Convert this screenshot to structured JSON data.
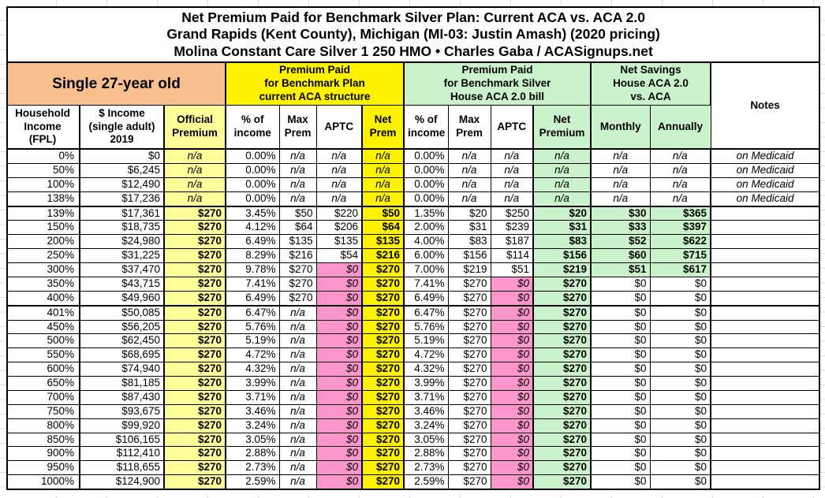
{
  "title": {
    "line1": "Net Premium Paid for Benchmark Silver Plan: Current ACA vs. ACA 2.0",
    "line2": "Grand Rapids (Kent County), Michigan (MI-03: Justin Amash) (2020 pricing)",
    "line3": "Molina Constant Care Silver 1 250 HMO • Charles Gaba / ACASignups.net"
  },
  "sections": {
    "demographic": "Single 27-year old",
    "aca": "Premium Paid\nfor Benchmark Plan\ncurrent ACA structure",
    "aca2": "Premium Paid\nfor Benchmark Silver\nHouse ACA 2.0 bill",
    "savings": "Net Savings\nHouse ACA 2.0\nvs. ACA",
    "notes": "Notes"
  },
  "columns": [
    "Household\nIncome\n(FPL)",
    "$ Income\n(single adult)\n2019",
    "Official\nPremium",
    "% of\nincome",
    "Max\nPrem",
    "APTC",
    "Net\nPrem",
    "% of\nincome",
    "Max\nPrem",
    "APTC",
    "Net\nPremium",
    "Monthly",
    "Annually"
  ],
  "colors": {
    "demographic_header": "#FABF8F",
    "aca_section_yellow": "#FFF200",
    "official_premium_yellow": "#FFFF99",
    "green_section": "#CBF3CB",
    "zero_aptc_pink": "#FA96CB",
    "border": "#000000",
    "background": "#FFFFFF"
  },
  "chart_data": {
    "type": "table",
    "title": "Net Premium Paid for Benchmark Silver Plan: Current ACA vs. ACA 2.0",
    "subtitle": "Grand Rapids (Kent County), Michigan (MI-03: Justin Amash) (2020 pricing)",
    "plan": "Molina Constant Care Silver 1 250 HMO • Charles Gaba / ACASignups.net",
    "column_keys": [
      "fpl",
      "income",
      "official-premium",
      "aca-pct-income",
      "aca-max-prem",
      "aca-aptc",
      "aca-net-prem",
      "aca2-pct-income",
      "aca2-max-prem",
      "aca2-aptc",
      "aca2-net-premium",
      "savings-monthly",
      "savings-annually",
      "notes"
    ],
    "thick_after_rows": [
      3,
      10
    ],
    "rows": [
      [
        "0%",
        "$0",
        "n/a",
        "0.00%",
        "n/a",
        "n/a",
        "n/a",
        "0.00%",
        "n/a",
        "n/a",
        "n/a",
        "n/a",
        "n/a",
        "on Medicaid"
      ],
      [
        "50%",
        "$6,245",
        "n/a",
        "0.00%",
        "n/a",
        "n/a",
        "n/a",
        "0.00%",
        "n/a",
        "n/a",
        "n/a",
        "n/a",
        "n/a",
        "on Medicaid"
      ],
      [
        "100%",
        "$12,490",
        "n/a",
        "0.00%",
        "n/a",
        "n/a",
        "n/a",
        "0.00%",
        "n/a",
        "n/a",
        "n/a",
        "n/a",
        "n/a",
        "on Medicaid"
      ],
      [
        "138%",
        "$17,236",
        "n/a",
        "0.00%",
        "n/a",
        "n/a",
        "n/a",
        "0.00%",
        "n/a",
        "n/a",
        "n/a",
        "n/a",
        "n/a",
        "on Medicaid"
      ],
      [
        "139%",
        "$17,361",
        "$270",
        "3.45%",
        "$50",
        "$220",
        "$50",
        "1.35%",
        "$20",
        "$250",
        "$20",
        "$30",
        "$365",
        ""
      ],
      [
        "150%",
        "$18,735",
        "$270",
        "4.12%",
        "$64",
        "$206",
        "$64",
        "2.00%",
        "$31",
        "$239",
        "$31",
        "$33",
        "$397",
        ""
      ],
      [
        "200%",
        "$24,980",
        "$270",
        "6.49%",
        "$135",
        "$135",
        "$135",
        "4.00%",
        "$83",
        "$187",
        "$83",
        "$52",
        "$622",
        ""
      ],
      [
        "250%",
        "$31,225",
        "$270",
        "8.29%",
        "$216",
        "$54",
        "$216",
        "6.00%",
        "$156",
        "$114",
        "$156",
        "$60",
        "$715",
        ""
      ],
      [
        "300%",
        "$37,470",
        "$270",
        "9.78%",
        "$270",
        "$0",
        "$270",
        "7.00%",
        "$219",
        "$51",
        "$219",
        "$51",
        "$617",
        ""
      ],
      [
        "350%",
        "$43,715",
        "$270",
        "7.41%",
        "$270",
        "$0",
        "$270",
        "7.41%",
        "$270",
        "$0",
        "$270",
        "$0",
        "$0",
        ""
      ],
      [
        "400%",
        "$49,960",
        "$270",
        "6.49%",
        "$270",
        "$0",
        "$270",
        "6.49%",
        "$270",
        "$0",
        "$270",
        "$0",
        "$0",
        ""
      ],
      [
        "401%",
        "$50,085",
        "$270",
        "6.47%",
        "n/a",
        "$0",
        "$270",
        "6.47%",
        "$270",
        "$0",
        "$270",
        "$0",
        "$0",
        ""
      ],
      [
        "450%",
        "$56,205",
        "$270",
        "5.76%",
        "n/a",
        "$0",
        "$270",
        "5.76%",
        "$270",
        "$0",
        "$270",
        "$0",
        "$0",
        ""
      ],
      [
        "500%",
        "$62,450",
        "$270",
        "5.19%",
        "n/a",
        "$0",
        "$270",
        "5.19%",
        "$270",
        "$0",
        "$270",
        "$0",
        "$0",
        ""
      ],
      [
        "550%",
        "$68,695",
        "$270",
        "4.72%",
        "n/a",
        "$0",
        "$270",
        "4.72%",
        "$270",
        "$0",
        "$270",
        "$0",
        "$0",
        ""
      ],
      [
        "600%",
        "$74,940",
        "$270",
        "4.32%",
        "n/a",
        "$0",
        "$270",
        "4.32%",
        "$270",
        "$0",
        "$270",
        "$0",
        "$0",
        ""
      ],
      [
        "650%",
        "$81,185",
        "$270",
        "3.99%",
        "n/a",
        "$0",
        "$270",
        "3.99%",
        "$270",
        "$0",
        "$270",
        "$0",
        "$0",
        ""
      ],
      [
        "700%",
        "$87,430",
        "$270",
        "3.71%",
        "n/a",
        "$0",
        "$270",
        "3.71%",
        "$270",
        "$0",
        "$270",
        "$0",
        "$0",
        ""
      ],
      [
        "750%",
        "$93,675",
        "$270",
        "3.46%",
        "n/a",
        "$0",
        "$270",
        "3.46%",
        "$270",
        "$0",
        "$270",
        "$0",
        "$0",
        ""
      ],
      [
        "800%",
        "$99,920",
        "$270",
        "3.24%",
        "n/a",
        "$0",
        "$270",
        "3.24%",
        "$270",
        "$0",
        "$270",
        "$0",
        "$0",
        ""
      ],
      [
        "850%",
        "$106,165",
        "$270",
        "3.05%",
        "n/a",
        "$0",
        "$270",
        "3.05%",
        "$270",
        "$0",
        "$270",
        "$0",
        "$0",
        ""
      ],
      [
        "900%",
        "$112,410",
        "$270",
        "2.88%",
        "n/a",
        "$0",
        "$270",
        "2.88%",
        "$270",
        "$0",
        "$270",
        "$0",
        "$0",
        ""
      ],
      [
        "950%",
        "$118,655",
        "$270",
        "2.73%",
        "n/a",
        "$0",
        "$270",
        "2.73%",
        "$270",
        "$0",
        "$270",
        "$0",
        "$0",
        ""
      ],
      [
        "1000%",
        "$124,900",
        "$270",
        "2.59%",
        "n/a",
        "$0",
        "$270",
        "2.59%",
        "$270",
        "$0",
        "$270",
        "$0",
        "$0",
        ""
      ]
    ]
  }
}
